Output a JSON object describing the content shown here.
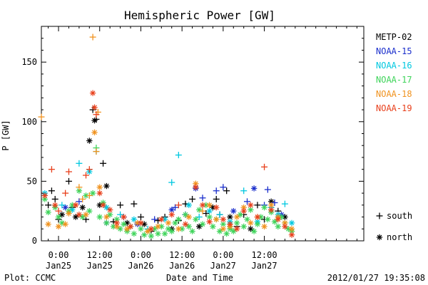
{
  "chart_data": {
    "type": "scatter",
    "title": "Hemispheric Power [GW]",
    "ylabel": "P [GW]",
    "xlabel": "Date and Time",
    "ylim": [
      0,
      180
    ],
    "yticks": [
      0,
      50,
      100,
      150
    ],
    "xlim_hours": [
      -5,
      89
    ],
    "xticks": [
      {
        "hour": 0,
        "time": "0:00",
        "date": "Jan25"
      },
      {
        "hour": 12,
        "time": "12:00",
        "date": "Jan25"
      },
      {
        "hour": 24,
        "time": "0:00",
        "date": "Jan26"
      },
      {
        "hour": 36,
        "time": "12:00",
        "date": "Jan26"
      },
      {
        "hour": 48,
        "time": "0:00",
        "date": "Jan27"
      },
      {
        "hour": 60,
        "time": "12:00",
        "date": "Jan27"
      }
    ],
    "x_minor_step_hours": 3,
    "legend_position": "right",
    "marker_legend": [
      {
        "symbol": "+",
        "label": "south"
      },
      {
        "symbol": "*",
        "label": "north"
      }
    ],
    "series": [
      {
        "name": "METP-02",
        "color": "#000000",
        "points": [
          [
            -3,
            30,
            "+"
          ],
          [
            -2,
            42,
            "+"
          ],
          [
            -1,
            35,
            "+"
          ],
          [
            0,
            18,
            "+"
          ],
          [
            1,
            22,
            "*"
          ],
          [
            3,
            50,
            "+"
          ],
          [
            4,
            28,
            "+"
          ],
          [
            5,
            20,
            "*"
          ],
          [
            7,
            28,
            "*"
          ],
          [
            8,
            18,
            "+"
          ],
          [
            9,
            84,
            "*"
          ],
          [
            10,
            110,
            "+"
          ],
          [
            10.5,
            101,
            "*"
          ],
          [
            11,
            102,
            "+"
          ],
          [
            12,
            30,
            "*"
          ],
          [
            13,
            65,
            "+"
          ],
          [
            14,
            46,
            "*"
          ],
          [
            16,
            16,
            "+"
          ],
          [
            18,
            30,
            "+"
          ],
          [
            20,
            15,
            "*"
          ],
          [
            22,
            31,
            "+"
          ],
          [
            24,
            20,
            "+"
          ],
          [
            25,
            14,
            "*"
          ],
          [
            27,
            8,
            "+"
          ],
          [
            29,
            17,
            "+"
          ],
          [
            31,
            20,
            "+"
          ],
          [
            33,
            10,
            "*"
          ],
          [
            35,
            17,
            "+"
          ],
          [
            37,
            31,
            "+"
          ],
          [
            39,
            35,
            "+"
          ],
          [
            41,
            12,
            "*"
          ],
          [
            43,
            23,
            "+"
          ],
          [
            45,
            28,
            "*"
          ],
          [
            46,
            35,
            "+"
          ],
          [
            47,
            22,
            "+"
          ],
          [
            49,
            42,
            "+"
          ],
          [
            50,
            20,
            "*"
          ],
          [
            52,
            12,
            "+"
          ],
          [
            54,
            22,
            "+"
          ],
          [
            56,
            10,
            "*"
          ],
          [
            58,
            30,
            "+"
          ],
          [
            60,
            18,
            "+"
          ],
          [
            62,
            33,
            "*"
          ],
          [
            64,
            25,
            "+"
          ],
          [
            66,
            20,
            "*"
          ]
        ]
      },
      {
        "name": "NOAA-15",
        "color": "#1a2ecc",
        "points": [
          [
            2,
            28,
            "*"
          ],
          [
            6,
            33,
            "+"
          ],
          [
            14,
            15,
            "*"
          ],
          [
            19,
            20,
            "+"
          ],
          [
            23,
            14,
            "*"
          ],
          [
            28,
            18,
            "+"
          ],
          [
            33,
            26,
            "*"
          ],
          [
            34,
            28,
            "+"
          ],
          [
            37,
            22,
            "+"
          ],
          [
            40,
            44,
            "*"
          ],
          [
            42,
            36,
            "+"
          ],
          [
            46,
            42,
            "+"
          ],
          [
            48,
            45,
            "+"
          ],
          [
            51,
            25,
            "*"
          ],
          [
            55,
            33,
            "+"
          ],
          [
            57,
            44,
            "*"
          ],
          [
            60,
            30,
            "+"
          ],
          [
            61,
            43,
            "+"
          ],
          [
            63,
            32,
            "+"
          ],
          [
            65,
            22,
            "*"
          ]
        ]
      },
      {
        "name": "NOAA-16",
        "color": "#00c8e0",
        "points": [
          [
            -4,
            40,
            "*"
          ],
          [
            1,
            30,
            "+"
          ],
          [
            4,
            26,
            "*"
          ],
          [
            6,
            65,
            "+"
          ],
          [
            9,
            58,
            "*"
          ],
          [
            11,
            75,
            "+"
          ],
          [
            14,
            28,
            "*"
          ],
          [
            18,
            22,
            "+"
          ],
          [
            22,
            18,
            "*"
          ],
          [
            26,
            10,
            "+"
          ],
          [
            31,
            18,
            "*"
          ],
          [
            33,
            49,
            "+"
          ],
          [
            35,
            72,
            "+"
          ],
          [
            38,
            30,
            "*"
          ],
          [
            41,
            20,
            "+"
          ],
          [
            44,
            25,
            "*"
          ],
          [
            47,
            22,
            "+"
          ],
          [
            50,
            16,
            "*"
          ],
          [
            54,
            42,
            "+"
          ],
          [
            58,
            16,
            "*"
          ],
          [
            62,
            28,
            "+"
          ],
          [
            64,
            22,
            "*"
          ],
          [
            66,
            31,
            "+"
          ],
          [
            68,
            15,
            "*"
          ]
        ]
      },
      {
        "name": "NOAA-17",
        "color": "#3ed45a",
        "points": [
          [
            -4,
            35,
            "*"
          ],
          [
            -3,
            24,
            "*"
          ],
          [
            -1,
            28,
            "*"
          ],
          [
            0,
            20,
            "*"
          ],
          [
            1,
            15,
            "*"
          ],
          [
            3,
            25,
            "*"
          ],
          [
            4,
            30,
            "*"
          ],
          [
            6,
            42,
            "*"
          ],
          [
            7,
            20,
            "*"
          ],
          [
            8,
            38,
            "*"
          ],
          [
            9,
            25,
            "*"
          ],
          [
            10,
            40,
            "*"
          ],
          [
            11,
            78,
            "+"
          ],
          [
            12,
            20,
            "*"
          ],
          [
            13,
            32,
            "*"
          ],
          [
            14,
            15,
            "*"
          ],
          [
            15,
            22,
            "*"
          ],
          [
            16,
            12,
            "*"
          ],
          [
            17,
            18,
            "*"
          ],
          [
            18,
            10,
            "*"
          ],
          [
            19,
            14,
            "*"
          ],
          [
            20,
            8,
            "*"
          ],
          [
            21,
            12,
            "*"
          ],
          [
            22,
            6,
            "*"
          ],
          [
            24,
            10,
            "*"
          ],
          [
            25,
            5,
            "*"
          ],
          [
            26,
            8,
            "*"
          ],
          [
            27,
            4,
            "*"
          ],
          [
            28,
            10,
            "*"
          ],
          [
            29,
            6,
            "*"
          ],
          [
            30,
            12,
            "*"
          ],
          [
            31,
            6,
            "*"
          ],
          [
            32,
            10,
            "*"
          ],
          [
            33,
            8,
            "*"
          ],
          [
            34,
            15,
            "*"
          ],
          [
            35,
            18,
            "*"
          ],
          [
            36,
            10,
            "*"
          ],
          [
            37,
            22,
            "*"
          ],
          [
            38,
            12,
            "*"
          ],
          [
            39,
            8,
            "*"
          ],
          [
            40,
            18,
            "*"
          ],
          [
            41,
            26,
            "*"
          ],
          [
            42,
            14,
            "*"
          ],
          [
            43,
            30,
            "*"
          ],
          [
            44,
            20,
            "*"
          ],
          [
            45,
            12,
            "*"
          ],
          [
            46,
            18,
            "*"
          ],
          [
            47,
            8,
            "*"
          ],
          [
            48,
            14,
            "*"
          ],
          [
            49,
            6,
            "*"
          ],
          [
            50,
            10,
            "*"
          ],
          [
            51,
            8,
            "*"
          ],
          [
            52,
            15,
            "*"
          ],
          [
            53,
            22,
            "*"
          ],
          [
            54,
            12,
            "*"
          ],
          [
            55,
            18,
            "*"
          ],
          [
            56,
            26,
            "*"
          ],
          [
            57,
            8,
            "*"
          ],
          [
            58,
            14,
            "*"
          ],
          [
            59,
            20,
            "*"
          ],
          [
            60,
            28,
            "*"
          ],
          [
            61,
            18,
            "*"
          ],
          [
            62,
            24,
            "*"
          ],
          [
            63,
            16,
            "*"
          ],
          [
            64,
            12,
            "*"
          ],
          [
            65,
            20,
            "*"
          ],
          [
            66,
            15,
            "*"
          ],
          [
            67,
            10,
            "*"
          ],
          [
            68,
            8,
            "*"
          ]
        ]
      },
      {
        "name": "NOAA-18",
        "color": "#f0921e",
        "points": [
          [
            -5,
            104,
            "+"
          ],
          [
            -3,
            14,
            "*"
          ],
          [
            0,
            12,
            "*"
          ],
          [
            2,
            14,
            "*"
          ],
          [
            3,
            23,
            "*"
          ],
          [
            5,
            30,
            "*"
          ],
          [
            6,
            45,
            "+"
          ],
          [
            7,
            35,
            "+"
          ],
          [
            8,
            22,
            "*"
          ],
          [
            9,
            38,
            "+"
          ],
          [
            10,
            171,
            "+"
          ],
          [
            10.5,
            91,
            "*"
          ],
          [
            11,
            75,
            "+"
          ],
          [
            11.5,
            108,
            "+"
          ],
          [
            12,
            45,
            "*"
          ],
          [
            14,
            20,
            "*"
          ],
          [
            17,
            12,
            "*"
          ],
          [
            20,
            10,
            "*"
          ],
          [
            23,
            15,
            "*"
          ],
          [
            26,
            8,
            "*"
          ],
          [
            29,
            12,
            "*"
          ],
          [
            32,
            15,
            "*"
          ],
          [
            35,
            10,
            "*"
          ],
          [
            38,
            20,
            "*"
          ],
          [
            40,
            48,
            "*"
          ],
          [
            42,
            25,
            "+"
          ],
          [
            44,
            30,
            "*"
          ],
          [
            46,
            18,
            "*"
          ],
          [
            48,
            10,
            "*"
          ],
          [
            50,
            12,
            "*"
          ],
          [
            52,
            20,
            "*"
          ],
          [
            54,
            28,
            "*"
          ],
          [
            56,
            15,
            "*"
          ],
          [
            58,
            20,
            "*"
          ],
          [
            60,
            12,
            "*"
          ],
          [
            62,
            30,
            "*"
          ],
          [
            64,
            20,
            "*"
          ],
          [
            66,
            15,
            "*"
          ],
          [
            68,
            10,
            "*"
          ]
        ]
      },
      {
        "name": "NOAA-19",
        "color": "#e8401c",
        "points": [
          [
            -4,
            38,
            "*"
          ],
          [
            -2,
            60,
            "+"
          ],
          [
            -1,
            30,
            "*"
          ],
          [
            0,
            25,
            "+"
          ],
          [
            2,
            40,
            "+"
          ],
          [
            3,
            58,
            "+"
          ],
          [
            5,
            30,
            "*"
          ],
          [
            6,
            22,
            "*"
          ],
          [
            8,
            55,
            "+"
          ],
          [
            9,
            60,
            "+"
          ],
          [
            10,
            124,
            "*"
          ],
          [
            10.5,
            112,
            "*"
          ],
          [
            11,
            106,
            "+"
          ],
          [
            12,
            40,
            "*"
          ],
          [
            13,
            30,
            "*"
          ],
          [
            15,
            26,
            "*"
          ],
          [
            17,
            15,
            "*"
          ],
          [
            19,
            20,
            "*"
          ],
          [
            21,
            12,
            "*"
          ],
          [
            24,
            15,
            "*"
          ],
          [
            27,
            10,
            "*"
          ],
          [
            30,
            18,
            "*"
          ],
          [
            33,
            22,
            "*"
          ],
          [
            35,
            30,
            "+"
          ],
          [
            37,
            14,
            "*"
          ],
          [
            40,
            45,
            "*"
          ],
          [
            42,
            30,
            "*"
          ],
          [
            44,
            16,
            "*"
          ],
          [
            46,
            28,
            "*"
          ],
          [
            48,
            18,
            "*"
          ],
          [
            50,
            14,
            "*"
          ],
          [
            52,
            10,
            "*"
          ],
          [
            54,
            25,
            "*"
          ],
          [
            56,
            30,
            "*"
          ],
          [
            58,
            20,
            "*"
          ],
          [
            60,
            62,
            "+"
          ],
          [
            62,
            26,
            "*"
          ],
          [
            64,
            18,
            "*"
          ],
          [
            66,
            12,
            "*"
          ],
          [
            68,
            5,
            "*"
          ]
        ]
      }
    ]
  },
  "footer": {
    "left": "Plot: CCMC",
    "right": "2012/01/27 19:35:08"
  }
}
